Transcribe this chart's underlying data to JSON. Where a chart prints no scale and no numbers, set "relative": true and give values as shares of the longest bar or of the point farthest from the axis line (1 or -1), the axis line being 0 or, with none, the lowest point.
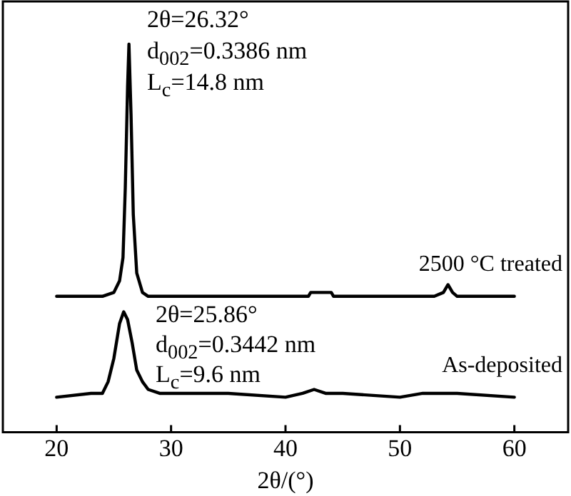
{
  "chart_data": {
    "type": "line",
    "relative": true,
    "xlabel": "2θ/(°)",
    "xlim": [
      15.3,
      64.7
    ],
    "xticks": [
      20,
      30,
      40,
      50,
      60
    ],
    "grid": false,
    "legend": false,
    "marker": "none",
    "line_style": "solid",
    "annotations": [
      "2θ=26.32°",
      "d$_{002}$=0.3386 nm",
      "L$_{c}$=14.8 nm",
      "2θ=25.86°",
      "d$_{002}$=0.3442 nm",
      "L$_{c}$=9.6 nm"
    ],
    "series": [
      {
        "name": "2500 °C treated",
        "color": "#000000",
        "x": [
          20,
          24,
          25,
          25.5,
          25.8,
          26.0,
          26.2,
          26.32,
          26.5,
          26.7,
          27.0,
          27.5,
          28,
          30,
          35,
          40,
          42,
          42.2,
          42.5,
          43.5,
          44,
          44.2,
          45,
          46,
          50,
          53,
          53.8,
          54.2,
          54.6,
          55,
          60
        ],
        "values": [
          0.35,
          0.35,
          0.36,
          0.39,
          0.45,
          0.63,
          0.89,
          1,
          0.82,
          0.56,
          0.41,
          0.36,
          0.35,
          0.35,
          0.35,
          0.35,
          0.35,
          0.36,
          0.36,
          0.36,
          0.36,
          0.35,
          0.35,
          0.35,
          0.35,
          0.35,
          0.36,
          0.38,
          0.36,
          0.35,
          0.35
        ]
      },
      {
        "name": "As-deposited",
        "color": "#000000",
        "x": [
          20,
          23,
          24,
          24.5,
          25,
          25.5,
          25.86,
          26.2,
          26.6,
          27,
          27.5,
          28,
          29,
          30,
          35,
          40,
          41.5,
          42.5,
          43.5,
          44.5,
          45,
          50,
          52,
          53.5,
          55,
          60
        ],
        "values": [
          0.09,
          0.1,
          0.1,
          0.13,
          0.19,
          0.28,
          0.31,
          0.29,
          0.23,
          0.16,
          0.13,
          0.11,
          0.1,
          0.1,
          0.1,
          0.09,
          0.1,
          0.11,
          0.1,
          0.1,
          0.1,
          0.09,
          0.1,
          0.1,
          0.1,
          0.09
        ]
      }
    ]
  }
}
